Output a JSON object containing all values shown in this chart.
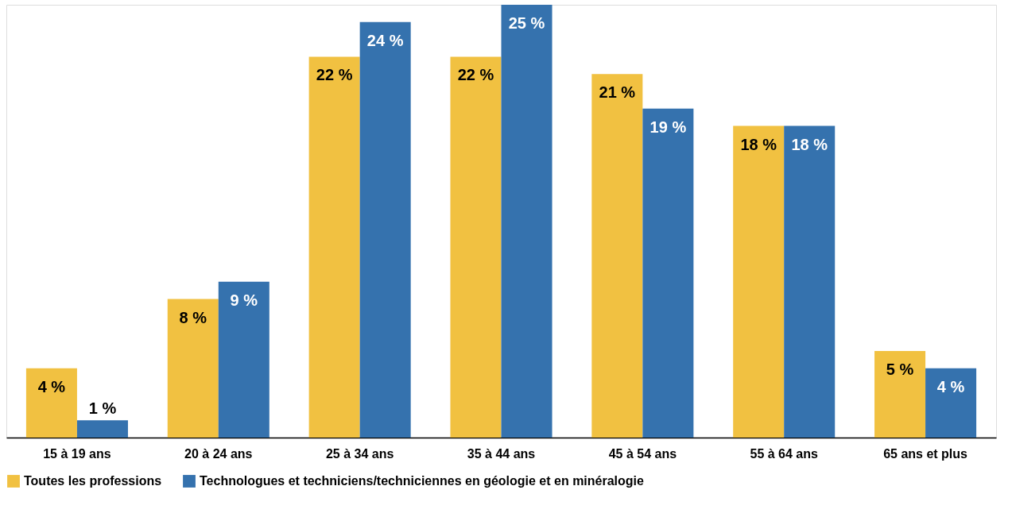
{
  "chart_data": {
    "type": "bar",
    "categories": [
      "15 à 19 ans",
      "20 à 24 ans",
      "25 à 34 ans",
      "35 à 44 ans",
      "45 à 54 ans",
      "55 à 64 ans",
      "65 ans et plus"
    ],
    "series": [
      {
        "name": "Toutes les professions",
        "color": "#f1c141",
        "values": [
          4,
          8,
          22,
          22,
          21,
          18,
          5
        ],
        "value_labels": [
          "4 %",
          "8 %",
          "22 %",
          "22 %",
          "21 %",
          "18 %",
          "5 %"
        ]
      },
      {
        "name": "Technologues et techniciens/techniciennes en géologie et en minéralogie",
        "color": "#3572ae",
        "values": [
          1,
          9,
          24,
          25,
          19,
          18,
          4
        ],
        "value_labels": [
          "1 %",
          "9 %",
          "24 %",
          "25 %",
          "19 %",
          "18 %",
          "4 %"
        ]
      }
    ],
    "legend": "bottom",
    "grid": false
  }
}
